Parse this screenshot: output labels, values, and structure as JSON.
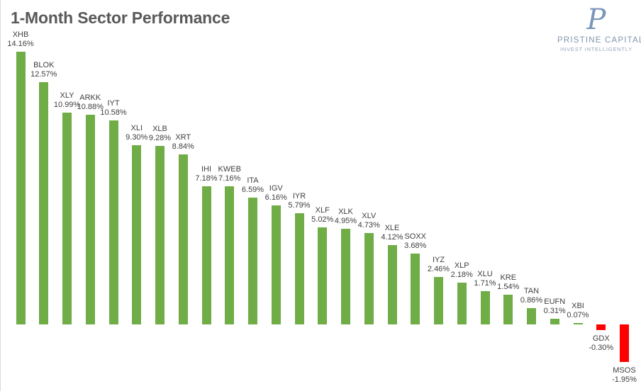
{
  "header": {
    "title": "1-Month Sector Performance"
  },
  "logo": {
    "monogram": "P",
    "name": "PRISTINE CAPITAL",
    "tagline": "INVEST INTELLIGENTLY",
    "brand_color": "#7A96BA"
  },
  "colors": {
    "title_text": "#595959",
    "label_text": "#404040",
    "positive_bar": "#70AD47",
    "negative_bar": "#FF0000"
  },
  "chart_data": {
    "type": "bar",
    "title": "1-Month Sector Performance",
    "categories": [
      "XHB",
      "BLOK",
      "XLY",
      "ARKK",
      "IYT",
      "XLI",
      "XLB",
      "XRT",
      "IHI",
      "KWEB",
      "ITA",
      "IGV",
      "IYR",
      "XLF",
      "XLK",
      "XLV",
      "XLE",
      "SOXX",
      "IYZ",
      "XLP",
      "XLU",
      "KRE",
      "TAN",
      "EUFN",
      "XBI",
      "GDX",
      "MSOS"
    ],
    "values": [
      14.16,
      12.57,
      10.99,
      10.88,
      10.58,
      9.3,
      9.28,
      8.84,
      7.18,
      7.16,
      6.59,
      6.16,
      5.79,
      5.02,
      4.95,
      4.73,
      4.12,
      3.68,
      2.46,
      2.18,
      1.71,
      1.54,
      0.86,
      0.31,
      0.07,
      -0.3,
      -1.95
    ],
    "value_labels": [
      "14.16%",
      "12.57%",
      "10.99%",
      "10.88%",
      "10.58%",
      "9.30%",
      "9.28%",
      "8.84%",
      "7.18%",
      "7.16%",
      "6.59%",
      "6.16%",
      "5.79%",
      "5.02%",
      "4.95%",
      "4.73%",
      "4.12%",
      "3.68%",
      "2.46%",
      "2.18%",
      "1.71%",
      "1.54%",
      "0.86%",
      "0.31%",
      "0.07%",
      "-0.30%",
      "-1.95%"
    ],
    "xlabel": "",
    "ylabel": "",
    "axes_hidden": true,
    "gridlines": false,
    "legend": "none",
    "data_label_style": "ticker above percent, below bar when negative",
    "positive_color": "#70AD47",
    "negative_color": "#FF0000"
  }
}
